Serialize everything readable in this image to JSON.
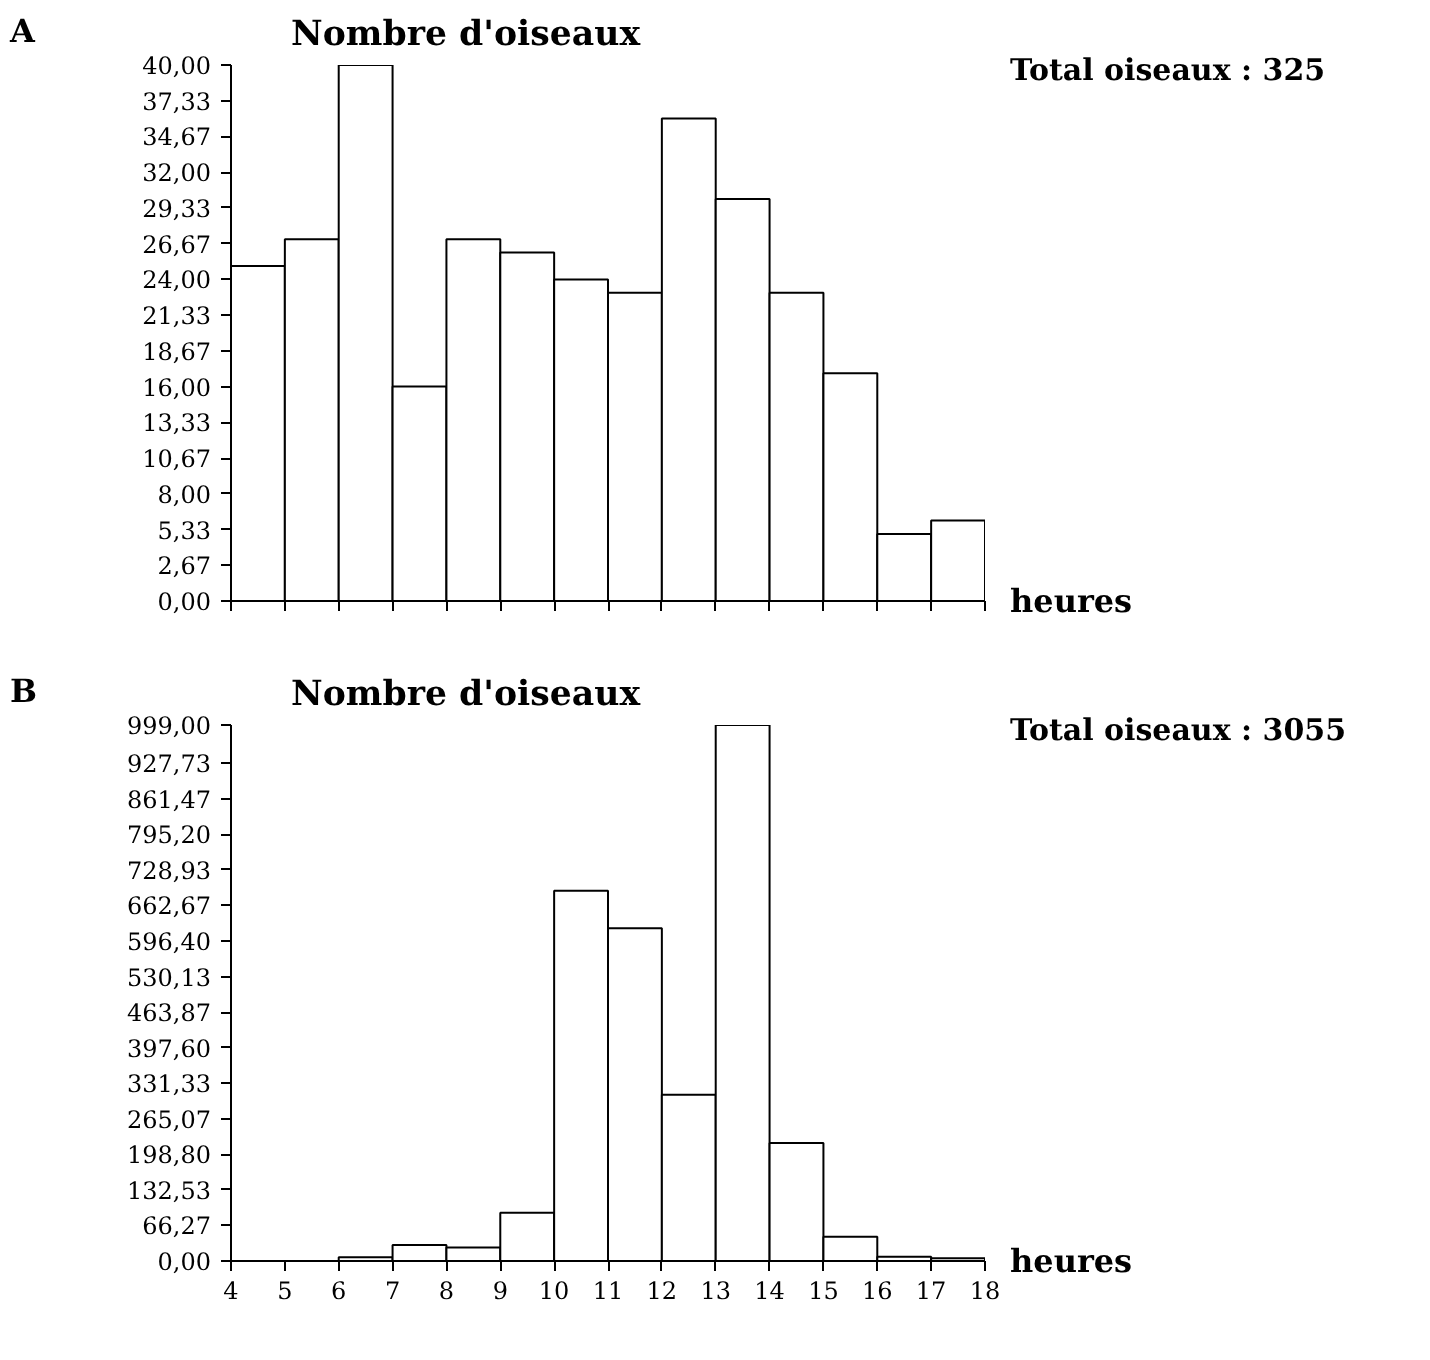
{
  "chart_data": [
    {
      "type": "histogram",
      "title": "A",
      "ylabel": "Nombre d'oiseaux",
      "xlabel": "heures",
      "annotations": [
        "Total oiseaux : 325"
      ],
      "bins": [
        4,
        5,
        6,
        7,
        8,
        9,
        10,
        11,
        12,
        13,
        14,
        15,
        16,
        17,
        18
      ],
      "values": [
        25,
        27,
        40,
        16,
        27,
        26,
        24,
        23,
        36,
        30,
        23,
        17,
        5,
        6
      ],
      "color": "#ffffff",
      "xlim": [
        4,
        18
      ],
      "xticks": [
        {
          "value": 4,
          "label": null
        },
        {
          "value": 5,
          "label": null
        },
        {
          "value": 6,
          "label": null
        },
        {
          "value": 7,
          "label": null
        },
        {
          "value": 8,
          "label": null
        },
        {
          "value": 9,
          "label": null
        },
        {
          "value": 10,
          "label": null
        },
        {
          "value": 11,
          "label": null
        },
        {
          "value": 12,
          "label": null
        },
        {
          "value": 13,
          "label": null
        },
        {
          "value": 14,
          "label": null
        },
        {
          "value": 15,
          "label": null
        },
        {
          "value": 16,
          "label": null
        },
        {
          "value": 17,
          "label": null
        },
        {
          "value": 18,
          "label": null
        }
      ],
      "ylim": [
        0,
        40
      ],
      "yticks": [
        {
          "value": 0,
          "label": "0,00"
        },
        {
          "value": 2.67,
          "label": "2,67"
        },
        {
          "value": 5.33,
          "label": "5,33"
        },
        {
          "value": 8,
          "label": "8,00"
        },
        {
          "value": 10.67,
          "label": "10,67"
        },
        {
          "value": 13.33,
          "label": "13,33"
        },
        {
          "value": 16,
          "label": "16,00"
        },
        {
          "value": 18.67,
          "label": "18,67"
        },
        {
          "value": 21.33,
          "label": "21,33"
        },
        {
          "value": 24,
          "label": "24,00"
        },
        {
          "value": 26.67,
          "label": "26,67"
        },
        {
          "value": 29.33,
          "label": "29,33"
        },
        {
          "value": 32,
          "label": "32,00"
        },
        {
          "value": 34.67,
          "label": "34,67"
        },
        {
          "value": 37.33,
          "label": "37,33"
        },
        {
          "value": 40,
          "label": "40,00"
        }
      ],
      "tick_labels": "y",
      "grid": false
    },
    {
      "type": "histogram",
      "title": "B",
      "ylabel": "Nombre d'oiseaux",
      "xlabel": "heures",
      "annotations": [
        "Total oiseaux : 3055"
      ],
      "bins": [
        4,
        5,
        6,
        7,
        8,
        9,
        10,
        11,
        12,
        13,
        14,
        15,
        16,
        17,
        18
      ],
      "values": [
        0,
        0,
        7,
        30,
        25,
        90,
        690,
        620,
        310,
        999,
        220,
        45,
        8,
        5
      ],
      "color": "#ffffff",
      "xlim": [
        4,
        18
      ],
      "xticks": [
        4,
        5,
        6,
        7,
        8,
        9,
        10,
        11,
        12,
        13,
        14,
        15,
        16,
        17,
        18
      ],
      "ylim": [
        0,
        999
      ],
      "yticks": [
        {
          "value": 0,
          "label": "0,00"
        },
        {
          "value": 66.27,
          "label": "66,27"
        },
        {
          "value": 132.53,
          "label": "132,53"
        },
        {
          "value": 198.8,
          "label": "198,80"
        },
        {
          "value": 265.07,
          "label": "265,07"
        },
        {
          "value": 331.33,
          "label": "331,33"
        },
        {
          "value": 397.6,
          "label": "397,60"
        },
        {
          "value": 463.87,
          "label": "463,87"
        },
        {
          "value": 530.13,
          "label": "530,13"
        },
        {
          "value": 596.4,
          "label": "596,40"
        },
        {
          "value": 662.67,
          "label": "662,67"
        },
        {
          "value": 728.93,
          "label": "728,93"
        },
        {
          "value": 795.2,
          "label": "795,20"
        },
        {
          "value": 861.47,
          "label": "861,47"
        },
        {
          "value": 927.73,
          "label": "927,73"
        },
        {
          "value": 999,
          "label": "999,00"
        }
      ],
      "grid": false
    }
  ]
}
